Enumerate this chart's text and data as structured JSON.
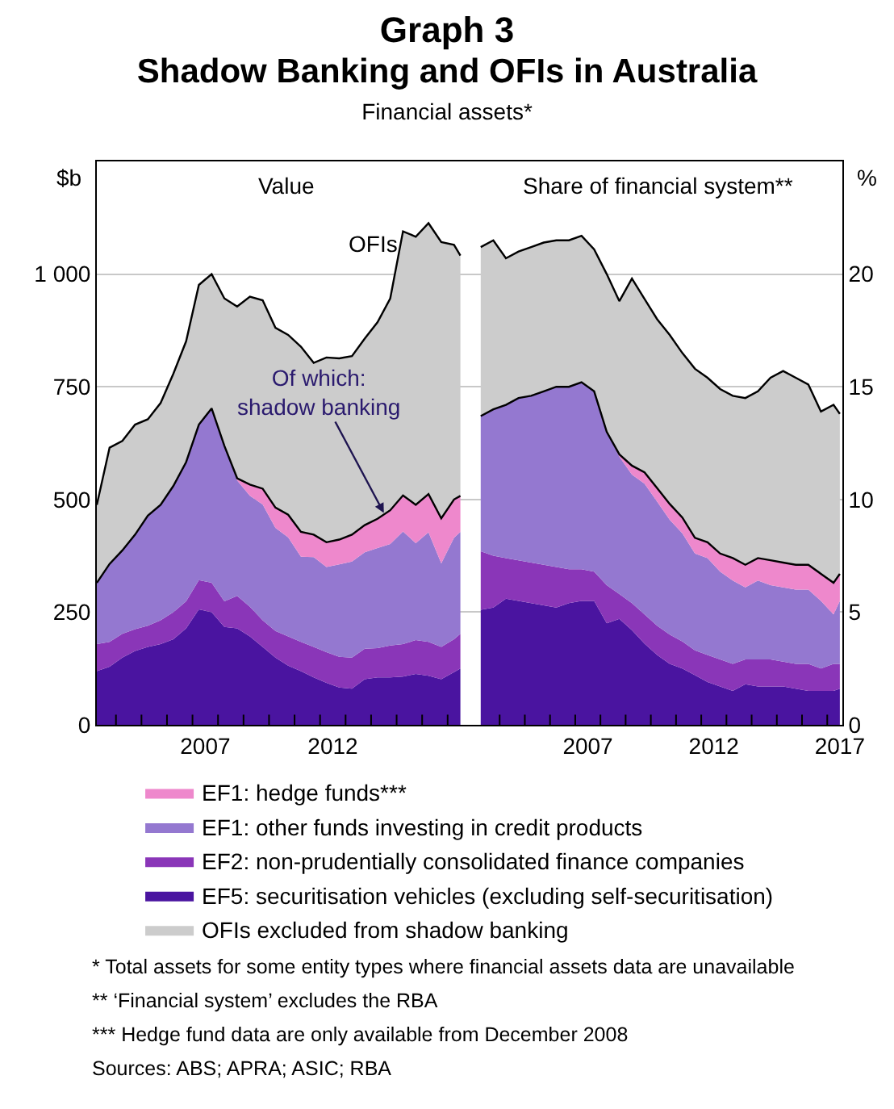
{
  "chart_data": [
    {
      "type": "area",
      "stacked": true,
      "title": "Graph 3",
      "subtitle": "Shadow Banking and OFIs in Australia",
      "ylabel": "$b",
      "annotations": [
        "Financial assets*",
        "Value",
        "OFIs",
        {
          "text": "Of which:\nshadow banking",
          "x": 2014.5,
          "y": 470
        },
        "*  Total assets for some entity types where financial assets data are unavailable",
        "**  ‘Financial system’ excludes the RBA",
        "***  Hedge fund data are only available from December 2008",
        "Sources: ABS; APRA; ASIC; RBA"
      ],
      "x": [
        2003.25,
        2003.75,
        2004.25,
        2004.75,
        2005.25,
        2005.75,
        2006.25,
        2006.75,
        2007.25,
        2007.75,
        2008.25,
        2008.75,
        2009.25,
        2009.75,
        2010.25,
        2010.75,
        2011.25,
        2011.75,
        2012.25,
        2012.75,
        2013.25,
        2013.75,
        2014.25,
        2014.75,
        2015.25,
        2015.75,
        2016.25,
        2016.75,
        2017.25,
        2017.5
      ],
      "series": [
        {
          "name": "EF5: securitisation vehicles (excluding self-securitisation)",
          "color": "#4a14a0",
          "values": [
            119,
            129,
            149,
            164,
            173,
            179,
            190,
            214,
            256,
            250,
            217,
            214,
            196,
            173,
            149,
            131,
            119,
            105,
            93,
            83,
            80,
            101,
            105,
            105,
            107,
            113,
            109,
            101,
            117,
            125
          ]
        },
        {
          "name": "EF2: non-prudentially consolidated finance companies",
          "color": "#8a36b8",
          "values": [
            60,
            55,
            53,
            48,
            47,
            53,
            60,
            60,
            65,
            65,
            57,
            72,
            66,
            59,
            59,
            65,
            65,
            68,
            68,
            68,
            69,
            68,
            65,
            71,
            72,
            75,
            75,
            72,
            73,
            77
          ]
        },
        {
          "name": "EF1: other funds investing in credit products",
          "color": "#9478d0",
          "values": [
            136,
            173,
            185,
            210,
            244,
            256,
            280,
            309,
            345,
            387,
            345,
            256,
            246,
            257,
            229,
            220,
            189,
            199,
            189,
            205,
            213,
            214,
            222,
            225,
            250,
            215,
            243,
            185,
            225,
            226
          ]
        },
        {
          "name": "EF1: hedge funds***",
          "color": "#ee88cc",
          "values": [
            0,
            0,
            0,
            0,
            0,
            0,
            0,
            0,
            0,
            0,
            0,
            5,
            25,
            35,
            45,
            50,
            55,
            50,
            55,
            55,
            60,
            60,
            65,
            75,
            80,
            85,
            85,
            100,
            85,
            80
          ]
        },
        {
          "name": "OFIs excluded from shadow banking",
          "color": "#cccccc",
          "values": [
            173,
            258,
            243,
            244,
            214,
            226,
            249,
            268,
            310,
            298,
            327,
            381,
            417,
            418,
            399,
            399,
            411,
            381,
            410,
            402,
            396,
            414,
            436,
            470,
            586,
            595,
            601,
            613,
            565,
            533
          ]
        }
      ],
      "xlim": [
        2003.25,
        2018.05
      ],
      "xticks": [
        {
          "value": 2004,
          "label": null
        },
        {
          "value": 2005,
          "label": null
        },
        {
          "value": 2006,
          "label": null
        },
        {
          "value": 2007,
          "label": null
        },
        {
          "value": 2007.5,
          "label": "2007"
        },
        {
          "value": 2008,
          "label": null
        },
        {
          "value": 2009,
          "label": null
        },
        {
          "value": 2010,
          "label": null
        },
        {
          "value": 2011,
          "label": null
        },
        {
          "value": 2012,
          "label": null
        },
        {
          "value": 2012.5,
          "label": "2012"
        },
        {
          "value": 2013,
          "label": null
        },
        {
          "value": 2014,
          "label": null
        },
        {
          "value": 2015,
          "label": null
        },
        {
          "value": 2016,
          "label": null
        },
        {
          "value": 2017,
          "label": null
        }
      ],
      "ylim": [
        0,
        1250
      ],
      "yticks": [
        0,
        250,
        500,
        750,
        {
          "value": 1000,
          "label": "1 000"
        }
      ],
      "grid": "y",
      "legend": "bottom"
    },
    {
      "type": "area",
      "stacked": true,
      "title": "Share of financial system**",
      "ylabel": "%",
      "x": [
        2003.25,
        2003.75,
        2004.25,
        2004.75,
        2005.25,
        2005.75,
        2006.25,
        2006.75,
        2007.25,
        2007.75,
        2008.25,
        2008.75,
        2009.25,
        2009.75,
        2010.25,
        2010.75,
        2011.25,
        2011.75,
        2012.25,
        2012.75,
        2013.25,
        2013.75,
        2014.25,
        2014.75,
        2015.25,
        2015.75,
        2016.25,
        2016.75,
        2017.25,
        2017.5
      ],
      "series": [
        {
          "color": "#4a14a0",
          "values": [
            5.1,
            5.2,
            5.6,
            5.5,
            5.4,
            5.3,
            5.2,
            5.4,
            5.5,
            5.5,
            4.5,
            4.7,
            4.2,
            3.6,
            3.1,
            2.7,
            2.5,
            2.2,
            1.9,
            1.7,
            1.5,
            1.8,
            1.7,
            1.7,
            1.7,
            1.6,
            1.5,
            1.5,
            1.5,
            1.6
          ]
        },
        {
          "color": "#8a36b8",
          "values": [
            2.6,
            2.3,
            1.8,
            1.8,
            1.8,
            1.8,
            1.8,
            1.5,
            1.4,
            1.3,
            1.7,
            1.1,
            1.2,
            1.3,
            1.3,
            1.3,
            1.2,
            1.1,
            1.2,
            1.2,
            1.2,
            1.1,
            1.2,
            1.2,
            1.1,
            1.1,
            1.2,
            1.0,
            1.2,
            1.1
          ]
        },
        {
          "color": "#9478d0",
          "values": [
            6.0,
            6.5,
            6.8,
            7.2,
            7.4,
            7.7,
            8.0,
            8.1,
            8.3,
            8.0,
            6.8,
            6.1,
            5.7,
            5.8,
            5.5,
            5.1,
            4.8,
            4.3,
            4.3,
            3.9,
            3.7,
            3.2,
            3.5,
            3.3,
            3.3,
            3.3,
            3.3,
            3.0,
            2.2,
            2.8
          ]
        },
        {
          "color": "#ee88cc",
          "values": [
            0,
            0,
            0,
            0,
            0,
            0,
            0,
            0,
            0,
            0,
            0,
            0.1,
            0.4,
            0.5,
            0.6,
            0.7,
            0.7,
            0.7,
            0.7,
            0.8,
            1.0,
            1.0,
            1.0,
            1.1,
            1.1,
            1.1,
            1.1,
            1.2,
            1.4,
            1.2
          ]
        },
        {
          "color": "#cccccc",
          "values": [
            7.5,
            7.5,
            6.5,
            6.5,
            6.6,
            6.6,
            6.5,
            6.5,
            6.5,
            6.3,
            7.0,
            6.8,
            8.3,
            7.7,
            7.5,
            7.5,
            7.3,
            7.5,
            7.3,
            7.3,
            7.2,
            7.4,
            7.4,
            8.1,
            8.5,
            8.3,
            8.0,
            7.2,
            7.9,
            7.1
          ]
        }
      ],
      "xlim": [
        2003.0,
        2017.6
      ],
      "xticks": [
        {
          "value": 2004,
          "label": null
        },
        {
          "value": 2005,
          "label": null
        },
        {
          "value": 2006,
          "label": null
        },
        {
          "value": 2007,
          "label": null
        },
        {
          "value": 2007.5,
          "label": "2007"
        },
        {
          "value": 2008,
          "label": null
        },
        {
          "value": 2009,
          "label": null
        },
        {
          "value": 2010,
          "label": null
        },
        {
          "value": 2011,
          "label": null
        },
        {
          "value": 2012,
          "label": null
        },
        {
          "value": 2012.5,
          "label": "2012"
        },
        {
          "value": 2013,
          "label": null
        },
        {
          "value": 2014,
          "label": null
        },
        {
          "value": 2015,
          "label": null
        },
        {
          "value": 2016,
          "label": null
        },
        {
          "value": 2017,
          "label": null
        },
        {
          "value": 2017.5,
          "label": "2017"
        }
      ],
      "ylim": [
        0,
        25
      ],
      "yticks": [
        0,
        5,
        10,
        15,
        20
      ],
      "grid": "y"
    }
  ]
}
